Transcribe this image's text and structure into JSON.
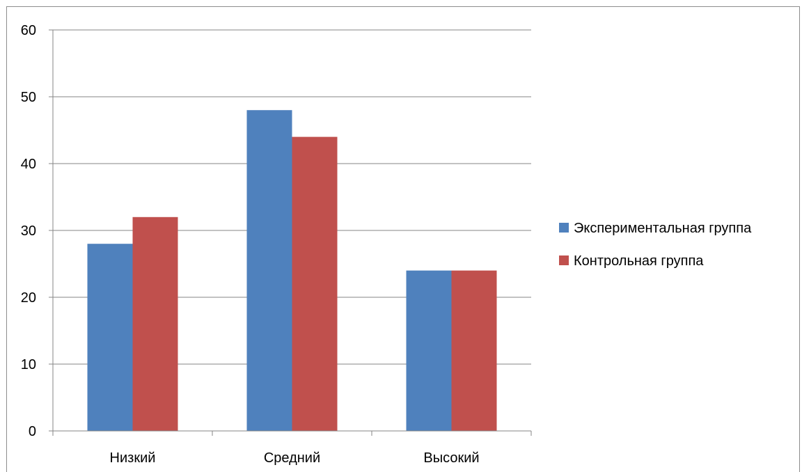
{
  "chart_data": {
    "type": "bar",
    "categories": [
      "Низкий",
      "Средний",
      "Высокий"
    ],
    "series": [
      {
        "name": "Экспериментальная группа",
        "values": [
          28,
          48,
          24
        ],
        "color": "#4F81BD"
      },
      {
        "name": "Контрольная группа",
        "values": [
          32,
          44,
          24
        ],
        "color": "#C0504D"
      }
    ],
    "ylim": [
      0,
      60
    ],
    "yticks": [
      0,
      10,
      20,
      30,
      40,
      50,
      60
    ],
    "grid": true,
    "legend_position": "right"
  }
}
